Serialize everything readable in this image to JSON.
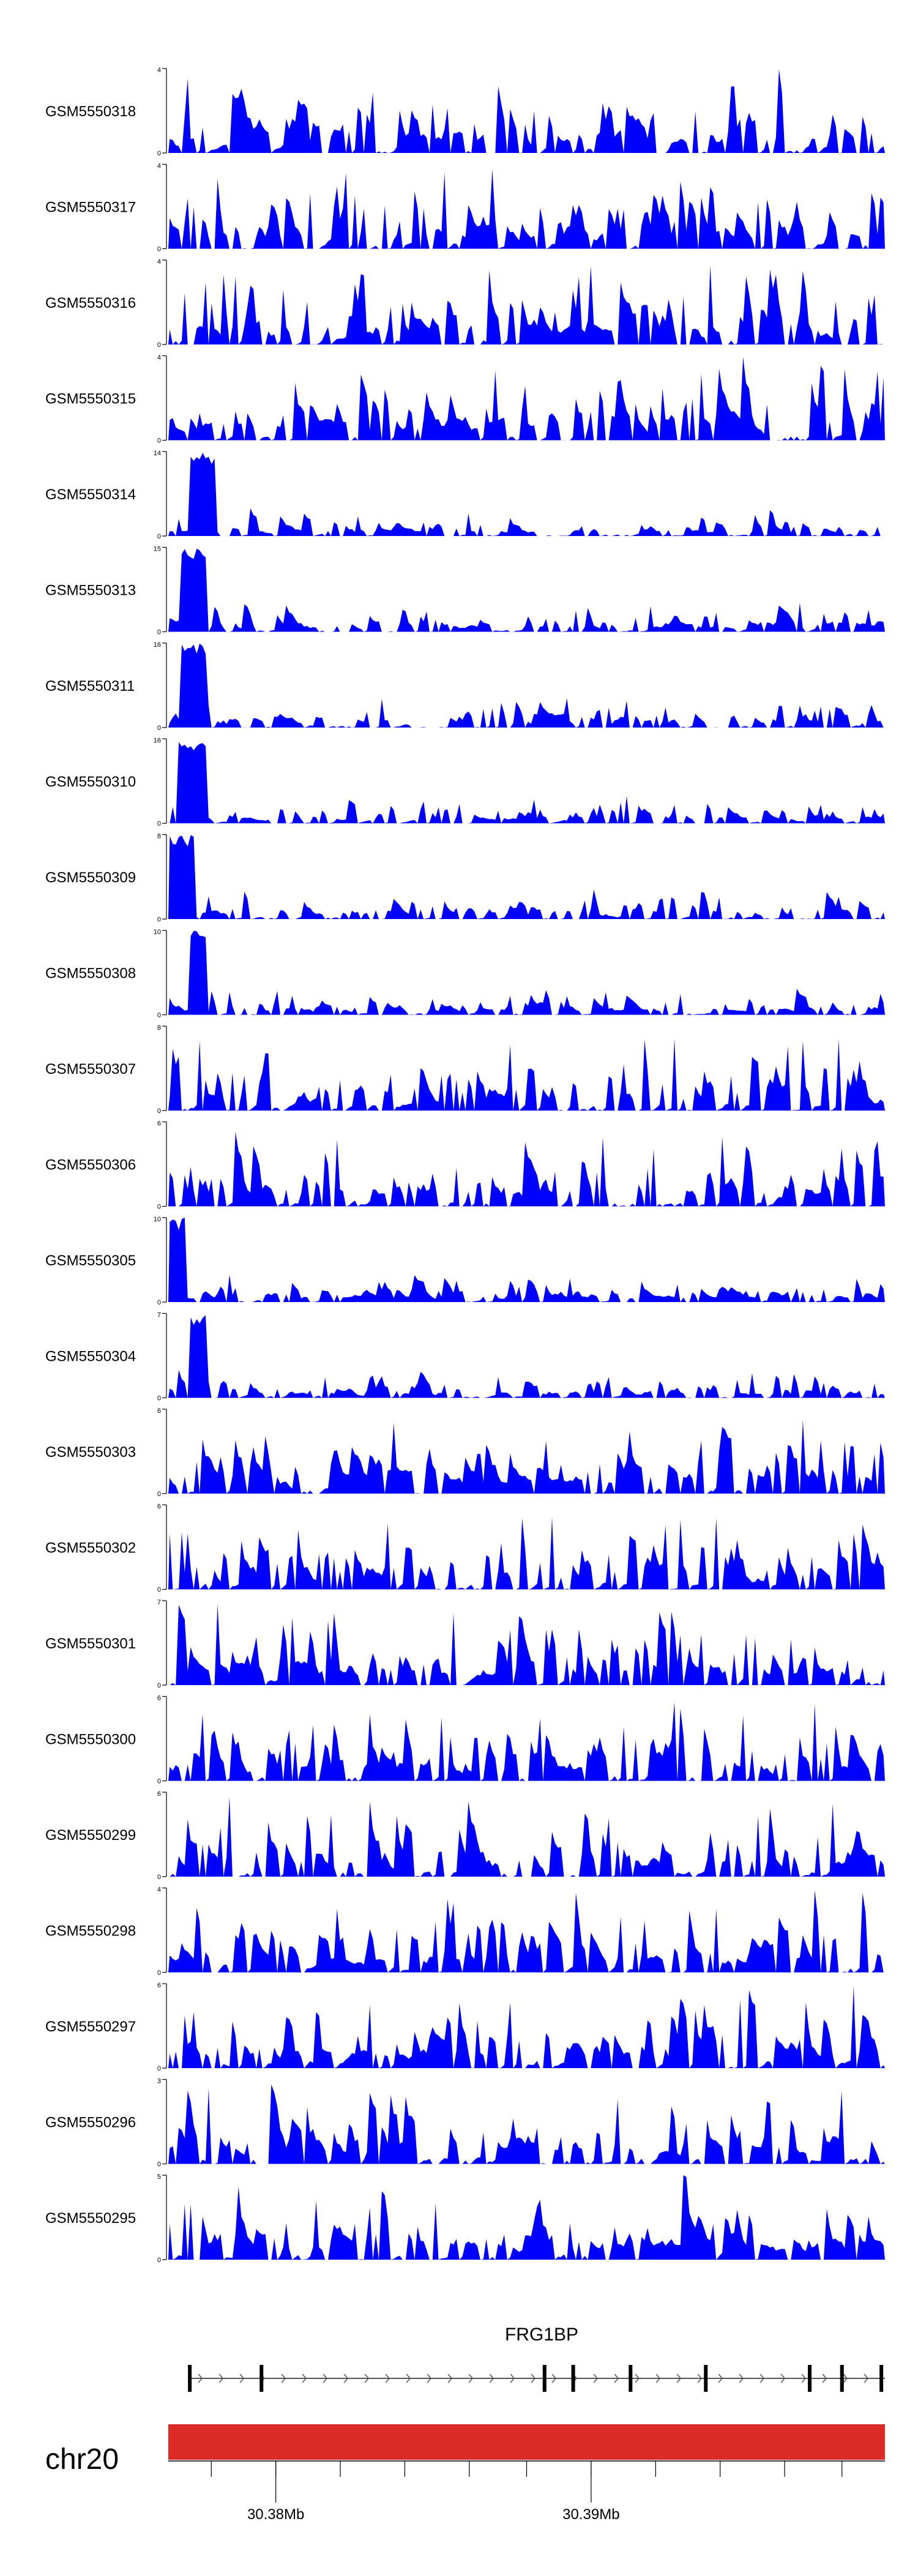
{
  "chart_data": {
    "type": "area",
    "colors": {
      "tracks": "#0000ff",
      "chromosome": "#dc2a26",
      "axis": "#000000"
    },
    "tracks": [
      {
        "name": "GSM5550318",
        "ymax": 4,
        "ymax_label": "4",
        "ymin_label": "0",
        "seed": 318
      },
      {
        "name": "GSM5550317",
        "ymax": 4,
        "ymax_label": "4",
        "ymin_label": "0",
        "seed": 317
      },
      {
        "name": "GSM5550316",
        "ymax": 4,
        "ymax_label": "4",
        "ymin_label": "0",
        "seed": 316
      },
      {
        "name": "GSM5550315",
        "ymax": 4,
        "ymax_label": "4",
        "ymin_label": "0",
        "seed": 315
      },
      {
        "name": "GSM5550314",
        "ymax": 14,
        "ymax_label": "14",
        "ymin_label": "0",
        "seed": 314,
        "peak_start": 0.03,
        "peak_end": 0.06
      },
      {
        "name": "GSM5550313",
        "ymax": 15,
        "ymax_label": "15",
        "ymin_label": "0",
        "seed": 313,
        "peak_start": 0.02,
        "peak_end": 0.05
      },
      {
        "name": "GSM5550311",
        "ymax": 16,
        "ymax_label": "16",
        "ymin_label": "0",
        "seed": 311,
        "peak_start": 0.02,
        "peak_end": 0.05
      },
      {
        "name": "GSM5550310",
        "ymax": 16,
        "ymax_label": "16",
        "ymin_label": "0",
        "seed": 310,
        "peak_start": 0.015,
        "peak_end": 0.05
      },
      {
        "name": "GSM5550309",
        "ymax": 8,
        "ymax_label": "8",
        "ymin_label": "0",
        "seed": 309,
        "peak_start": 0.0,
        "peak_end": 0.03
      },
      {
        "name": "GSM5550308",
        "ymax": 10,
        "ymax_label": "10",
        "ymin_label": "0",
        "seed": 308,
        "peak_start": 0.03,
        "peak_end": 0.05
      },
      {
        "name": "GSM5550307",
        "ymax": 8,
        "ymax_label": "8",
        "ymin_label": "0",
        "seed": 307
      },
      {
        "name": "GSM5550306",
        "ymax": 6,
        "ymax_label": "6",
        "ymin_label": "0",
        "seed": 306
      },
      {
        "name": "GSM5550305",
        "ymax": 10,
        "ymax_label": "10",
        "ymin_label": "0",
        "seed": 305,
        "peak_start": 0.0,
        "peak_end": 0.02
      },
      {
        "name": "GSM5550304",
        "ymax": 7,
        "ymax_label": "7",
        "ymin_label": "0",
        "seed": 304,
        "peak_start": 0.03,
        "peak_end": 0.05
      },
      {
        "name": "GSM5550303",
        "ymax": 6,
        "ymax_label": "6",
        "ymin_label": "0",
        "seed": 303
      },
      {
        "name": "GSM5550302",
        "ymax": 6,
        "ymax_label": "6",
        "ymin_label": "0",
        "seed": 302
      },
      {
        "name": "GSM5550301",
        "ymax": 7,
        "ymax_label": "7",
        "ymin_label": "0",
        "seed": 301
      },
      {
        "name": "GSM5550300",
        "ymax": 6,
        "ymax_label": "6",
        "ymin_label": "0",
        "seed": 300
      },
      {
        "name": "GSM5550299",
        "ymax": 6,
        "ymax_label": "6",
        "ymin_label": "0",
        "seed": 299
      },
      {
        "name": "GSM5550298",
        "ymax": 4,
        "ymax_label": "4",
        "ymin_label": "0",
        "seed": 298
      },
      {
        "name": "GSM5550297",
        "ymax": 6,
        "ymax_label": "6",
        "ymin_label": "0",
        "seed": 297
      },
      {
        "name": "GSM5550296",
        "ymax": 3,
        "ymax_label": "3",
        "ymin_label": "0",
        "seed": 296
      },
      {
        "name": "GSM5550295",
        "ymax": 5,
        "ymax_label": "5",
        "ymin_label": "0",
        "seed": 295
      }
    ],
    "gene": {
      "name": "FRG1BP",
      "region_fraction": [
        0.03,
        1.0
      ],
      "exon_fractions": [
        0.03,
        0.13,
        0.525,
        0.565,
        0.645,
        0.75,
        0.895,
        0.94,
        0.995
      ]
    },
    "chromosome": {
      "name": "chr20",
      "ticks": [
        {
          "fraction": 0.15,
          "label": "30.38Mb"
        },
        {
          "fraction": 0.59,
          "label": "30.39Mb"
        }
      ],
      "minor_tick_fractions": [
        0.06,
        0.15,
        0.24,
        0.33,
        0.42,
        0.5,
        0.59,
        0.68,
        0.77,
        0.86,
        0.94
      ]
    }
  }
}
